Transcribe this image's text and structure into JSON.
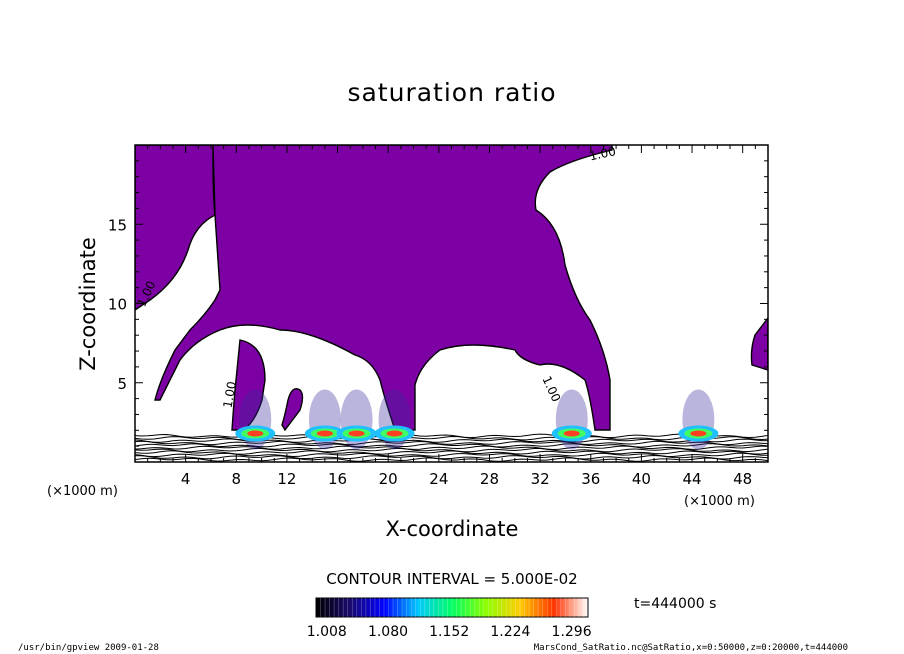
{
  "chart_data": {
    "type": "heatmap",
    "title": "saturation ratio",
    "xlabel": "X-coordinate",
    "ylabel": "Z-coordinate",
    "x_unit": "(×1000 m)",
    "y_unit": "(×1000 m)",
    "xlim": [
      0,
      50
    ],
    "ylim": [
      0,
      20
    ],
    "xticks": [
      4,
      8,
      12,
      16,
      20,
      24,
      28,
      32,
      36,
      40,
      44,
      48
    ],
    "yticks": [
      5,
      10,
      15
    ],
    "contour_interval": "CONTOUR INTERVAL = 5.000E-02",
    "contour_labels": [
      {
        "text": "1.00",
        "x": 37.0,
        "z": 19.2
      },
      {
        "text": "1.00",
        "x": 1.2,
        "z": 10.5
      },
      {
        "text": "1.00",
        "x": 7.8,
        "z": 4.2
      },
      {
        "text": "1.00",
        "x": 32.6,
        "z": 4.5
      }
    ],
    "time_label": "t=444000 s",
    "colorbar": {
      "tick_labels": [
        "1.008",
        "1.080",
        "1.152",
        "1.224",
        "1.296"
      ],
      "values": [
        1.008,
        1.08,
        1.152,
        1.224,
        1.296
      ],
      "colors": [
        "#000000",
        "#1a0a6e",
        "#0000ff",
        "#00c8ff",
        "#00ff64",
        "#8cff00",
        "#ffcc00",
        "#ff3300",
        "#ffffff"
      ]
    },
    "supersaturated_color": "#7d00a5",
    "hotspots_x": [
      9.5,
      15,
      17.5,
      20.5,
      34.5,
      44.5
    ]
  },
  "footer": {
    "left": "/usr/bin/gpview  2009-01-28",
    "right": "MarsCond_SatRatio.nc@SatRatio,x=0:50000,z=0:20000,t=444000"
  }
}
